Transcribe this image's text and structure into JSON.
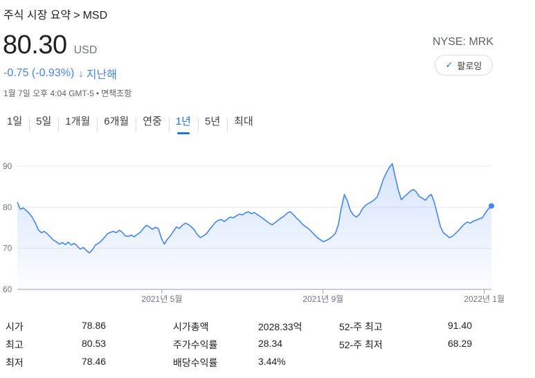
{
  "breadcrumb": {
    "parent": "주식 시장 요약",
    "separator": ">",
    "current": "MSD"
  },
  "quote": {
    "price": "80.30",
    "currency": "USD",
    "change": "-0.75 (-0.93%)",
    "arrow": "↓",
    "period": "지난해",
    "timestamp": "1월 7일 오후 4:04 GMT-5",
    "dot": "•",
    "disclaimer": "면책조항",
    "exchange": "NYSE: MRK",
    "change_color": "#4285f4"
  },
  "follow": {
    "icon": "check-icon",
    "label": "팔로잉"
  },
  "tabs": [
    {
      "label": "1일",
      "active": false
    },
    {
      "label": "5일",
      "active": false
    },
    {
      "label": "1개월",
      "active": false
    },
    {
      "label": "6개월",
      "active": false
    },
    {
      "label": "연중",
      "active": false
    },
    {
      "label": "1년",
      "active": true
    },
    {
      "label": "5년",
      "active": false
    },
    {
      "label": "최대",
      "active": false
    }
  ],
  "chart_data": {
    "type": "area",
    "ylim": [
      60,
      92
    ],
    "yticks": [
      "90",
      "80",
      "70",
      "60"
    ],
    "ytick_values": [
      90,
      80,
      70,
      60
    ],
    "xticks": [
      "2021년 5월",
      "2021년 9월",
      "2022년 1월"
    ],
    "xtick_values": [
      0.305,
      0.645,
      0.985
    ],
    "series": [
      {
        "values": [
          81.2,
          79.5,
          79.8,
          79.2,
          78.5,
          77.5,
          76.2,
          74.5,
          73.8,
          74.1,
          73.5,
          72.8,
          72.0,
          71.6,
          71.0,
          71.4,
          70.9,
          71.5,
          70.8,
          71.2,
          70.5,
          69.8,
          70.2,
          69.5,
          68.9,
          69.6,
          70.8,
          71.2,
          71.8,
          72.6,
          73.5,
          73.9,
          74.1,
          73.8,
          74.4,
          73.9,
          73.0,
          72.9,
          73.2,
          72.8,
          73.4,
          73.9,
          74.8,
          75.6,
          75.2,
          74.6,
          75.1,
          74.8,
          72.5,
          71.0,
          72.2,
          73.0,
          74.1,
          75.2,
          74.8,
          75.6,
          76.1,
          75.8,
          75.2,
          74.5,
          73.3,
          72.6,
          73.0,
          73.5,
          74.5,
          75.4,
          76.3,
          76.8,
          77.0,
          76.5,
          77.1,
          77.6,
          77.4,
          77.9,
          78.3,
          78.1,
          78.6,
          78.9,
          78.4,
          78.7,
          78.2,
          77.7,
          77.2,
          76.6,
          76.1,
          75.7,
          76.3,
          76.9,
          77.4,
          77.9,
          78.6,
          78.9,
          78.2,
          77.4,
          76.7,
          75.9,
          75.3,
          74.8,
          74.1,
          73.3,
          72.6,
          72.1,
          71.6,
          71.9,
          72.3,
          72.9,
          73.6,
          75.8,
          79.8,
          83.1,
          81.5,
          79.2,
          78.1,
          77.6,
          78.2,
          79.6,
          80.4,
          80.9,
          81.3,
          81.8,
          82.6,
          84.6,
          86.8,
          88.4,
          89.7,
          90.6,
          87.2,
          84.1,
          81.8,
          82.6,
          83.2,
          83.9,
          84.3,
          83.7,
          82.6,
          82.2,
          81.7,
          82.6,
          83.1,
          81.1,
          78.2,
          75.3,
          73.8,
          73.2,
          72.6,
          72.9,
          73.6,
          74.3,
          75.1,
          75.9,
          76.4,
          76.1,
          76.6,
          76.9,
          77.2,
          77.4,
          78.6,
          79.6,
          80.3
        ]
      }
    ],
    "line_color": "#4285f4",
    "grid": true
  },
  "stats": [
    [
      {
        "label": "시가",
        "value": "78.86"
      },
      {
        "label": "시가총액",
        "value": "2028.33억"
      },
      {
        "label": "52-주 최고",
        "value": "91.40"
      }
    ],
    [
      {
        "label": "최고",
        "value": "80.53"
      },
      {
        "label": "주가수익률",
        "value": "28.34"
      },
      {
        "label": "52-주 최저",
        "value": "68.29"
      }
    ],
    [
      {
        "label": "최저",
        "value": "78.46"
      },
      {
        "label": "배당수익률",
        "value": "3.44%"
      },
      {
        "label": "",
        "value": ""
      }
    ]
  ]
}
